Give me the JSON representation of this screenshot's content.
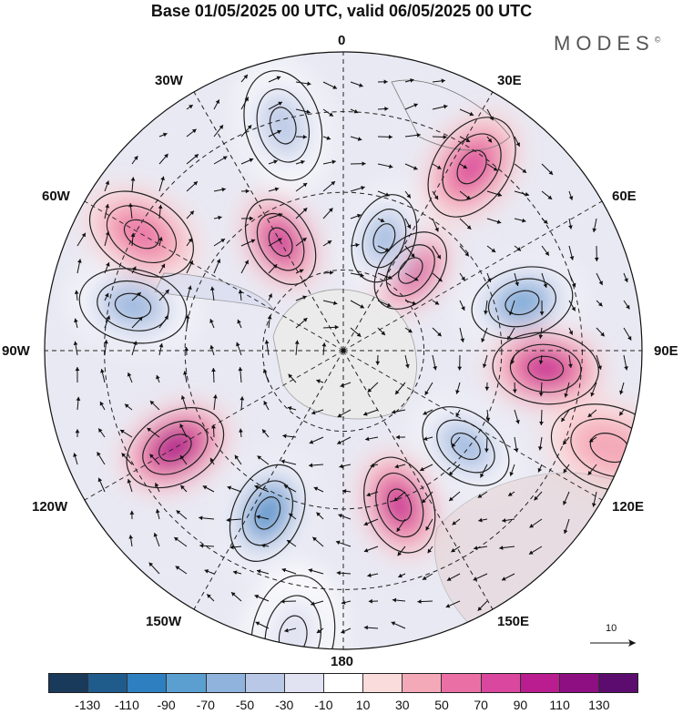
{
  "title": "Base 01/05/2025 00 UTC, valid 06/05/2025 00 UTC",
  "brand": "MODES",
  "brand_mark": "©",
  "longitude_labels": [
    {
      "id": "lon-0",
      "text": "0"
    },
    {
      "id": "lon-30e",
      "text": "30E"
    },
    {
      "id": "lon-60e",
      "text": "60E"
    },
    {
      "id": "lon-90e",
      "text": "90E"
    },
    {
      "id": "lon-120e",
      "text": "120E"
    },
    {
      "id": "lon-150e",
      "text": "150E"
    },
    {
      "id": "lon-180",
      "text": "180"
    },
    {
      "id": "lon-150w",
      "text": "150W"
    },
    {
      "id": "lon-120w",
      "text": "120W"
    },
    {
      "id": "lon-90w",
      "text": "90W"
    },
    {
      "id": "lon-60w",
      "text": "60W"
    },
    {
      "id": "lon-30w",
      "text": "30W"
    }
  ],
  "reference_vector": "10",
  "colorbar": {
    "colors": [
      "#1a3a5c",
      "#1f5c8c",
      "#2e7fbf",
      "#5b9fd1",
      "#8fb3dd",
      "#b8c8e6",
      "#e1e3f2",
      "#ffffff",
      "#fadcdc",
      "#f4a9b8",
      "#ea6fa4",
      "#d9479e",
      "#b91d8f",
      "#8e0f82",
      "#5c0c6e"
    ],
    "tick_labels": [
      "-130",
      "-110",
      "-90",
      "-70",
      "-50",
      "-30",
      "-10",
      "10",
      "30",
      "50",
      "70",
      "90",
      "110",
      "130"
    ]
  },
  "field_anomalies": [
    {
      "lon": 35,
      "lat_ring": 0.75,
      "value": 80
    },
    {
      "lon": 75,
      "lat_ring": 0.62,
      "value": -90
    },
    {
      "lon": 40,
      "lat_ring": 0.35,
      "value": 90
    },
    {
      "lon": 95,
      "lat_ring": 0.68,
      "value": 90
    },
    {
      "lon": 128,
      "lat_ring": 0.52,
      "value": -80
    },
    {
      "lon": 160,
      "lat_ring": 0.55,
      "value": 90
    },
    {
      "lon": 205,
      "lat_ring": 0.6,
      "value": -120
    },
    {
      "lon": 240,
      "lat_ring": 0.65,
      "value": 110
    },
    {
      "lon": 282,
      "lat_ring": 0.72,
      "value": -80
    },
    {
      "lon": 300,
      "lat_ring": 0.78,
      "value": 60
    },
    {
      "lon": 345,
      "lat_ring": 0.78,
      "value": -60
    },
    {
      "lon": 330,
      "lat_ring": 0.42,
      "value": 90
    },
    {
      "lon": 20,
      "lat_ring": 0.4,
      "value": -80
    },
    {
      "lon": 110,
      "lat_ring": 0.95,
      "value": 30
    },
    {
      "lon": 190,
      "lat_ring": 0.97,
      "value": -40
    }
  ]
}
